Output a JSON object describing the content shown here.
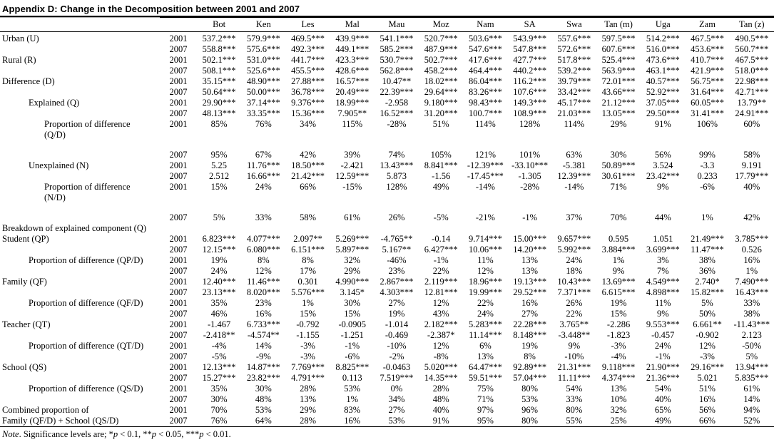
{
  "title": "Appendix D: Change in the Decomposition between 2001 and 2007",
  "header": {
    "columns": [
      "Bot",
      "Ken",
      "Les",
      "Mal",
      "Mau",
      "Moz",
      "Nam",
      "SA",
      "Swa",
      "Tan (m)",
      "Uga",
      "Zam",
      "Tan (z)"
    ]
  },
  "rows": [
    {
      "label": "Urban (U)",
      "indent": 0,
      "year": "2001",
      "values": [
        "537.2***",
        "579.9***",
        "469.5***",
        "439.9***",
        "541.1***",
        "520.7***",
        "503.6***",
        "543.9***",
        "557.6***",
        "597.5***",
        "514.2***",
        "467.5***",
        "490.5***"
      ]
    },
    {
      "label": "",
      "indent": 0,
      "year": "2007",
      "values": [
        "558.8***",
        "575.6***",
        "492.3***",
        "449.1***",
        "585.2***",
        "487.9***",
        "547.6***",
        "547.8***",
        "572.6***",
        "607.6***",
        "516.0***",
        "453.6***",
        "560.7***"
      ]
    },
    {
      "label": "Rural (R)",
      "indent": 0,
      "year": "2001",
      "values": [
        "502.1***",
        "531.0***",
        "441.7***",
        "423.3***",
        "530.7***",
        "502.7***",
        "417.6***",
        "427.7***",
        "517.8***",
        "525.4***",
        "473.6***",
        "410.7***",
        "467.5***"
      ]
    },
    {
      "label": "",
      "indent": 0,
      "year": "2007",
      "values": [
        "508.1***",
        "525.6***",
        "455.5***",
        "428.6***",
        "562.8***",
        "458.2***",
        "464.4***",
        "440.2***",
        "539.2***",
        "563.9***",
        "463.1***",
        "421.9***",
        "518.0***"
      ]
    },
    {
      "label": "Difference (D)",
      "indent": 0,
      "year": "2001",
      "values": [
        "35.15***",
        "48.90***",
        "27.88***",
        "16.57***",
        "10.47**",
        "18.02***",
        "86.04***",
        "116.2***",
        "39.79***",
        "72.01***",
        "40.57***",
        "56.75***",
        "22.98***"
      ]
    },
    {
      "label": "",
      "indent": 0,
      "year": "2007",
      "values": [
        "50.64***",
        "50.00***",
        "36.78***",
        "20.49***",
        "22.39***",
        "29.64***",
        "83.26***",
        "107.6***",
        "33.42***",
        "43.66***",
        "52.92***",
        "31.64***",
        "42.71***"
      ]
    },
    {
      "label": "Explained (Q)",
      "indent": 1,
      "year": "2001",
      "values": [
        "29.90***",
        "37.14***",
        "9.376***",
        "18.99***",
        "-2.958",
        "9.180***",
        "98.43***",
        "149.3***",
        "45.17***",
        "21.12***",
        "37.05***",
        "60.05***",
        "13.79**"
      ]
    },
    {
      "label": "",
      "indent": 1,
      "year": "2007",
      "values": [
        "48.13***",
        "33.35***",
        "15.36***",
        "7.905**",
        "16.52***",
        "31.20***",
        "100.7***",
        "108.9***",
        "21.03***",
        "13.05***",
        "29.50***",
        "31.41***",
        "24.91***"
      ]
    },
    {
      "label": "Proportion of difference",
      "label2": "(Q/D)",
      "indent": 2,
      "year": "2001",
      "values": [
        "85%",
        "76%",
        "34%",
        "115%",
        "-28%",
        "51%",
        "114%",
        "128%",
        "114%",
        "29%",
        "91%",
        "106%",
        "60%"
      ]
    },
    {
      "label": "",
      "indent": 2,
      "year": "2007",
      "spacer": true,
      "values": [
        "95%",
        "67%",
        "42%",
        "39%",
        "74%",
        "105%",
        "121%",
        "101%",
        "63%",
        "30%",
        "56%",
        "99%",
        "58%"
      ]
    },
    {
      "label": "Unexplained (N)",
      "indent": 1,
      "year": "2001",
      "values": [
        "5.25",
        "11.76***",
        "18.50***",
        "-2.421",
        "13.43***",
        "8.841***",
        "-12.39***",
        "-33.10***",
        "-5.381",
        "50.89***",
        "3.524",
        "-3.3",
        "9.191"
      ]
    },
    {
      "label": "",
      "indent": 1,
      "year": "2007",
      "values": [
        "2.512",
        "16.66***",
        "21.42***",
        "12.59***",
        "5.873",
        "-1.56",
        "-17.45***",
        "-1.305",
        "12.39***",
        "30.61***",
        "23.42***",
        "0.233",
        "17.79***"
      ]
    },
    {
      "label": "Proportion of difference",
      "label2": "(N/D)",
      "indent": 2,
      "year": "2001",
      "values": [
        "15%",
        "24%",
        "66%",
        "-15%",
        "128%",
        "49%",
        "-14%",
        "-28%",
        "-14%",
        "71%",
        "9%",
        "-6%",
        "40%"
      ]
    },
    {
      "label": "",
      "indent": 2,
      "year": "2007",
      "spacer": true,
      "values": [
        "5%",
        "33%",
        "58%",
        "61%",
        "26%",
        "-5%",
        "-21%",
        "-1%",
        "37%",
        "70%",
        "44%",
        "1%",
        "42%"
      ]
    },
    {
      "label": "Breakdown of explained component (Q)",
      "indent": 0,
      "section": true
    },
    {
      "label": "Student (QP)",
      "indent": 0,
      "year": "2001",
      "values": [
        "6.823***",
        "4.077***",
        "2.097**",
        "5.269***",
        "-4.765**",
        "-0.14",
        "9.714***",
        "15.00***",
        "9.657***",
        "0.595",
        "1.051",
        "21.49***",
        "3.785***"
      ]
    },
    {
      "label": "",
      "indent": 0,
      "year": "2007",
      "values": [
        "12.15***",
        "6.080***",
        "6.151***",
        "5.897***",
        "5.167**",
        "6.427***",
        "10.06***",
        "14.20***",
        "5.992***",
        "3.884***",
        "3.699***",
        "11.47***",
        "0.526"
      ]
    },
    {
      "label": "Proportion of difference (QP/D)",
      "indent": 1,
      "year": "2001",
      "values": [
        "19%",
        "8%",
        "8%",
        "32%",
        "-46%",
        "-1%",
        "11%",
        "13%",
        "24%",
        "1%",
        "3%",
        "38%",
        "16%"
      ]
    },
    {
      "label": "",
      "indent": 1,
      "year": "2007",
      "values": [
        "24%",
        "12%",
        "17%",
        "29%",
        "23%",
        "22%",
        "12%",
        "13%",
        "18%",
        "9%",
        "7%",
        "36%",
        "1%"
      ]
    },
    {
      "label": "Family (QF)",
      "indent": 0,
      "year": "2001",
      "values": [
        "12.40***",
        "11.46***",
        "0.301",
        "4.990***",
        "2.867***",
        "2.119***",
        "18.96***",
        "19.13***",
        "10.43***",
        "13.69***",
        "4.549***",
        "2.740*",
        "7.490***"
      ]
    },
    {
      "label": "",
      "indent": 0,
      "year": "2007",
      "values": [
        "23.13***",
        "8.020***",
        "5.576***",
        "3.145*",
        "4.303***",
        "12.81***",
        "19.99***",
        "29.52***",
        "7.371***",
        "6.615***",
        "4.898***",
        "15.82***",
        "16.43***"
      ]
    },
    {
      "label": "Proportion of difference (QF/D)",
      "indent": 1,
      "year": "2001",
      "values": [
        "35%",
        "23%",
        "1%",
        "30%",
        "27%",
        "12%",
        "22%",
        "16%",
        "26%",
        "19%",
        "11%",
        "5%",
        "33%"
      ]
    },
    {
      "label": "",
      "indent": 1,
      "year": "2007",
      "values": [
        "46%",
        "16%",
        "15%",
        "15%",
        "19%",
        "43%",
        "24%",
        "27%",
        "22%",
        "15%",
        "9%",
        "50%",
        "38%"
      ]
    },
    {
      "label": "Teacher (QT)",
      "indent": 0,
      "year": "2001",
      "values": [
        "-1.467",
        "6.733***",
        "-0.792",
        "-0.0905",
        "-1.014",
        "2.182***",
        "5.283***",
        "22.28***",
        "3.765**",
        "-2.286",
        "9.553***",
        "6.661**",
        "-11.43***"
      ]
    },
    {
      "label": "",
      "indent": 0,
      "year": "2007",
      "values": [
        "-2.418**",
        "-4.574**",
        "-1.155",
        "-1.251",
        "-0.469",
        "-2.387*",
        "11.14***",
        "8.148***",
        "-3.448**",
        "-1.823",
        "-0.457",
        "-0.902",
        "2.123"
      ]
    },
    {
      "label": "Proportion of difference (QT/D)",
      "indent": 1,
      "year": "2001",
      "values": [
        "-4%",
        "14%",
        "-3%",
        "-1%",
        "-10%",
        "12%",
        "6%",
        "19%",
        "9%",
        "-3%",
        "24%",
        "12%",
        "-50%"
      ]
    },
    {
      "label": "",
      "indent": 1,
      "year": "2007",
      "values": [
        "-5%",
        "-9%",
        "-3%",
        "-6%",
        "-2%",
        "-8%",
        "13%",
        "8%",
        "-10%",
        "-4%",
        "-1%",
        "-3%",
        "5%"
      ]
    },
    {
      "label": "School (QS)",
      "indent": 0,
      "year": "2001",
      "values": [
        "12.13***",
        "14.87***",
        "7.769***",
        "8.825***",
        "-0.0463",
        "5.020***",
        "64.47***",
        "92.89***",
        "21.31***",
        "9.118***",
        "21.90***",
        "29.16***",
        "13.94***"
      ]
    },
    {
      "label": "",
      "indent": 0,
      "year": "2007",
      "values": [
        "15.27***",
        "23.82***",
        "4.791***",
        "0.113",
        "7.519***",
        "14.35***",
        "59.51***",
        "57.04***",
        "11.11***",
        "4.374***",
        "21.36***",
        "5.021",
        "5.835***"
      ]
    },
    {
      "label": "Proportion of difference (QS/D)",
      "indent": 1,
      "year": "2001",
      "values": [
        "35%",
        "30%",
        "28%",
        "53%",
        "0%",
        "28%",
        "75%",
        "80%",
        "54%",
        "13%",
        "54%",
        "51%",
        "61%"
      ]
    },
    {
      "label": "",
      "indent": 1,
      "year": "2007",
      "values": [
        "30%",
        "48%",
        "13%",
        "1%",
        "34%",
        "48%",
        "71%",
        "53%",
        "33%",
        "10%",
        "40%",
        "16%",
        "14%"
      ]
    },
    {
      "label": "Combined proportion of",
      "indent": 0,
      "year": "2001",
      "values": [
        "70%",
        "53%",
        "29%",
        "83%",
        "27%",
        "40%",
        "97%",
        "96%",
        "80%",
        "32%",
        "65%",
        "56%",
        "94%"
      ]
    },
    {
      "label": "Family (QF/D) + School (QS/D)",
      "indent": 0,
      "year": "2007",
      "last": true,
      "values": [
        "76%",
        "64%",
        "28%",
        "16%",
        "53%",
        "91%",
        "95%",
        "80%",
        "55%",
        "25%",
        "49%",
        "66%",
        "52%"
      ]
    }
  ],
  "note": {
    "segments": [
      {
        "text": "Note",
        "italic": true
      },
      {
        "text": ". Significance levels are; *",
        "italic": false
      },
      {
        "text": "p",
        "italic": true
      },
      {
        "text": " < 0.1, **",
        "italic": false
      },
      {
        "text": "p",
        "italic": true
      },
      {
        "text": " < 0.05, ***",
        "italic": false
      },
      {
        "text": "p",
        "italic": true
      },
      {
        "text": " < 0.01.",
        "italic": false
      }
    ]
  }
}
